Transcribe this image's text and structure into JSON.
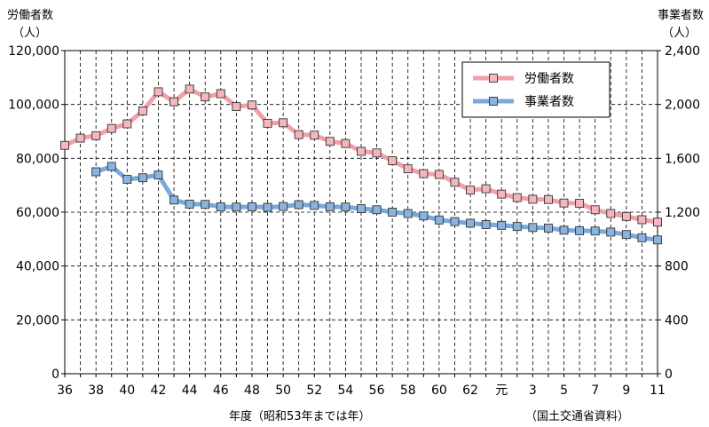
{
  "chart_data": {
    "type": "line",
    "left_axis": {
      "label": "労働者数",
      "unit": "（人）",
      "ylim": [
        0,
        120000
      ],
      "ticks": [
        "0",
        "20,000",
        "40,000",
        "60,000",
        "80,000",
        "100,000",
        "120,000"
      ]
    },
    "right_axis": {
      "label": "事業者数",
      "unit": "（人）",
      "ylim": [
        0,
        2400
      ],
      "ticks": [
        "0",
        "400",
        "800",
        "1,200",
        "1,600",
        "2,000",
        "2,400"
      ]
    },
    "xlabel": "年度（昭和53年までは年）",
    "source": "（国土交通省資料）",
    "x_tick_labels": [
      "36",
      "",
      "38",
      "",
      "40",
      "",
      "42",
      "",
      "44",
      "",
      "46",
      "",
      "48",
      "",
      "50",
      "",
      "52",
      "",
      "54",
      "",
      "56",
      "",
      "58",
      "",
      "60",
      "",
      "62",
      "",
      "元",
      "",
      "3",
      "",
      "5",
      "",
      "7",
      "",
      "9",
      "",
      "11"
    ],
    "legend": {
      "position": "top-right"
    },
    "grid": true,
    "series": [
      {
        "name": "労働者数",
        "axis": "left",
        "color": "#f0a0a8",
        "marker": "#f4b8bc",
        "values": [
          84800,
          87500,
          88400,
          91100,
          92800,
          97600,
          104700,
          101000,
          105700,
          102800,
          104000,
          99200,
          99800,
          93000,
          93200,
          88800,
          88600,
          86300,
          85500,
          82600,
          82000,
          79100,
          76100,
          74300,
          74000,
          71100,
          68200,
          68700,
          66700,
          65400,
          64800,
          64700,
          63400,
          63300,
          60900,
          59500,
          58400,
          57200,
          56300
        ],
        "values_note": ""
      },
      {
        "name": "事業者数",
        "axis": "right",
        "color": "#7ca8d8",
        "marker": "#8ab4e0",
        "values": [
          null,
          null,
          1500,
          1540,
          1444,
          1456,
          1476,
          1290,
          1260,
          1258,
          1240,
          1238,
          1240,
          1236,
          1242,
          1256,
          1250,
          1240,
          1238,
          1226,
          1218,
          1200,
          1190,
          1172,
          1142,
          1130,
          1118,
          1108,
          1102,
          1094,
          1086,
          1082,
          1066,
          1062,
          1060,
          1052,
          1034,
          1010,
          994
        ]
      }
    ]
  },
  "colors": {
    "grid": "#000000",
    "axis": "#000000",
    "background": "#ffffff"
  }
}
